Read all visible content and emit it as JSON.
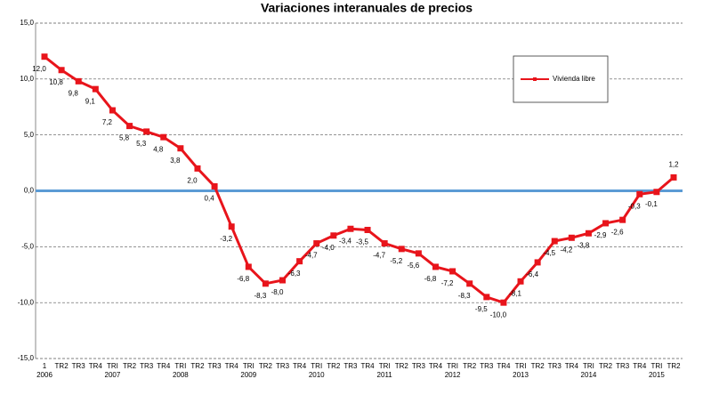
{
  "chart_data": {
    "type": "line",
    "title": "Variaciones interanuales de precios",
    "categories": [
      "1",
      "TR2",
      "TR3",
      "TR4",
      "TRI",
      "TR2",
      "TR3",
      "TR4",
      "TRI",
      "TR2",
      "TR3",
      "TR4",
      "TRI",
      "TR2",
      "TR3",
      "TR4",
      "TRI",
      "TR2",
      "TR3",
      "TR4",
      "TRI",
      "TR2",
      "TR3",
      "TR4",
      "TRI",
      "TR2",
      "TR3",
      "TR4",
      "TRI",
      "TR2",
      "TR3",
      "TR4",
      "TRI",
      "TR2",
      "TR3",
      "TR4",
      "TRI",
      "TR2"
    ],
    "years": [
      "2006",
      null,
      null,
      null,
      "2007",
      null,
      null,
      null,
      "2008",
      null,
      null,
      null,
      "2009",
      null,
      null,
      null,
      "2010",
      null,
      null,
      null,
      "2011",
      null,
      null,
      null,
      "2012",
      null,
      null,
      null,
      "2013",
      null,
      null,
      null,
      "2014",
      null,
      null,
      null,
      "2015",
      null
    ],
    "series": [
      {
        "name": "Vivienda libre",
        "color": "#e8141b",
        "values": [
          12.0,
          10.8,
          9.8,
          9.1,
          7.2,
          5.8,
          5.3,
          4.8,
          3.8,
          2.0,
          0.4,
          -3.2,
          -6.8,
          -8.3,
          -8.0,
          -6.3,
          -4.7,
          -4.0,
          -3.4,
          -3.5,
          -4.7,
          -5.2,
          -5.6,
          -6.8,
          -7.2,
          -8.3,
          -9.5,
          -10.0,
          -8.1,
          -6.4,
          -4.5,
          -4.2,
          -3.8,
          -2.9,
          -2.6,
          -0.3,
          -0.1,
          1.2
        ],
        "value_labels": [
          "12,0",
          "10,8",
          "9,8",
          "9,1",
          "7,2",
          "5,8",
          "5,3",
          "4,8",
          "3,8",
          "2,0",
          "0,4",
          "-3,2",
          "-6,8",
          "-8,3",
          "-8,0",
          "-6,3",
          "-4,7",
          "-4,0",
          "-3,4",
          "-3,5",
          "-4,7",
          "-5,2",
          "-5,6",
          "-6,8",
          "-7,2",
          "-8,3",
          "-9,5",
          "-10,0",
          "-8,1",
          "-6,4",
          "-4,5",
          "-4,2",
          "-3,8",
          "-2,9",
          "-2,6",
          "-0,3",
          "-0,1",
          "1,2"
        ]
      }
    ],
    "ylim": [
      -15,
      15
    ],
    "yticks": [
      {
        "value": -15,
        "label": "-15,0"
      },
      {
        "value": -10,
        "label": "-10,0"
      },
      {
        "value": -5,
        "label": "-5,0"
      },
      {
        "value": 0,
        "label": "0,0"
      },
      {
        "value": 5,
        "label": "5,0"
      },
      {
        "value": 10,
        "label": "10,0"
      },
      {
        "value": 15,
        "label": "15,0"
      }
    ],
    "grid": true,
    "zero_line_color": "#5b9bd5",
    "legend": "upper right"
  }
}
